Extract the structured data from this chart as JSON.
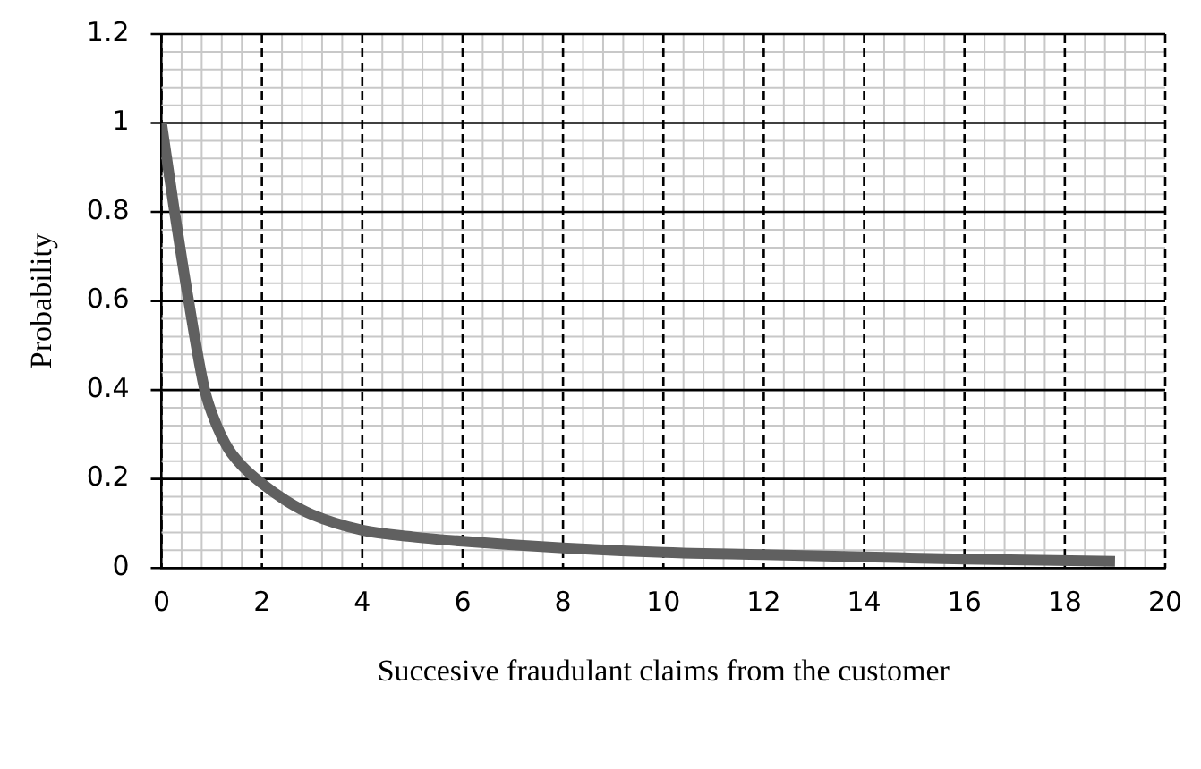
{
  "chart_data": {
    "type": "line",
    "xlabel": "Succesive fraudulant claims from the customer",
    "ylabel": "Probability",
    "x": [
      0,
      0.26,
      0.54,
      0.86,
      1.1,
      1.32,
      1.6,
      2,
      2.5,
      3,
      4,
      5,
      6,
      8,
      10,
      12,
      14,
      16,
      19
    ],
    "series": [
      {
        "color": "#606060",
        "values": [
          1,
          0.8,
          0.6,
          0.4,
          0.32,
          0.27,
          0.23,
          0.19,
          0.15,
          0.12,
          0.085,
          0.07,
          0.06,
          0.045,
          0.035,
          0.03,
          0.025,
          0.02,
          0.015
        ]
      }
    ],
    "xlim": [
      0,
      20
    ],
    "xticks": [
      0,
      2,
      4,
      6,
      8,
      10,
      12,
      14,
      16,
      18,
      20
    ],
    "ylim": [
      0,
      1.2
    ],
    "yticks": [
      0,
      0.2,
      0.4,
      0.6,
      0.8,
      1,
      1.2
    ],
    "grid": true,
    "legend": false,
    "marker": "none",
    "line_style": "solid"
  }
}
